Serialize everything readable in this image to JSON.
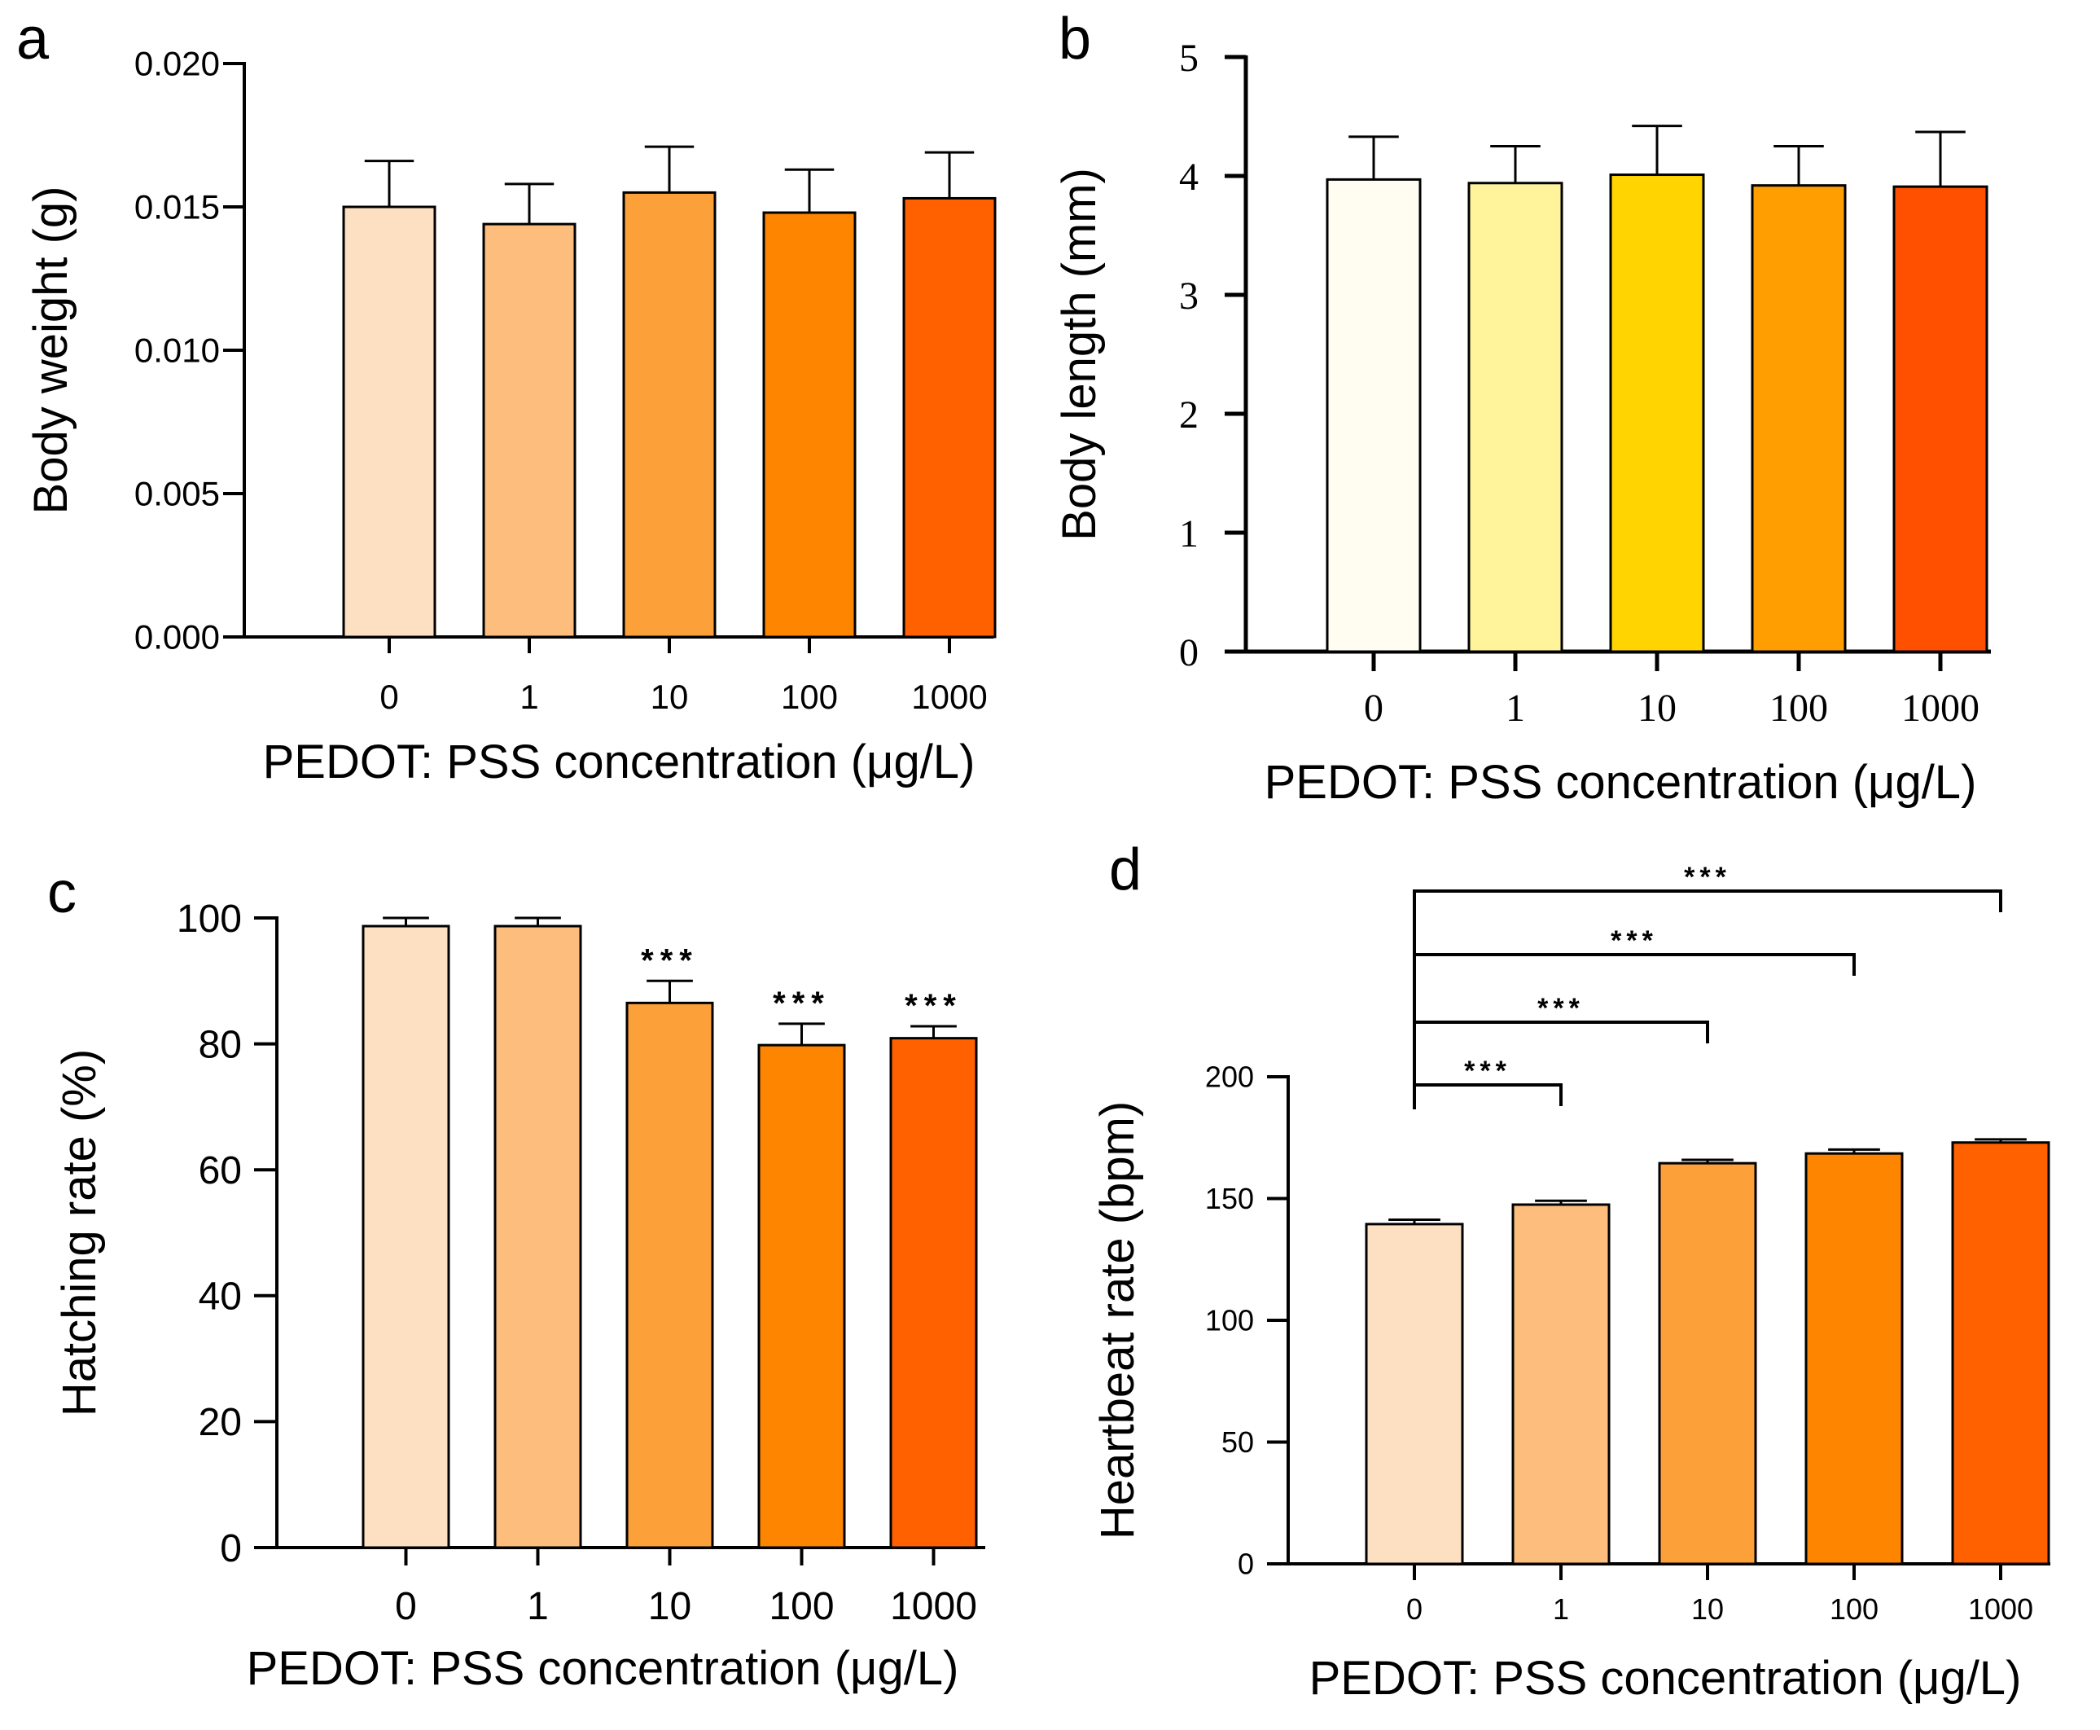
{
  "chart_data": [
    {
      "id": "a",
      "type": "bar",
      "panel_label": "a",
      "title": "",
      "xlabel": "PEDOT: PSS concentration (μg/L)",
      "ylabel": "Body weight (g)",
      "categories": [
        "0",
        "1",
        "10",
        "100",
        "1000"
      ],
      "values": [
        0.015,
        0.0144,
        0.0155,
        0.0148,
        0.0153
      ],
      "errors": [
        0.0016,
        0.0014,
        0.0016,
        0.0015,
        0.0016
      ],
      "ylim": [
        0,
        0.02
      ],
      "yticks": [
        0,
        0.005,
        0.01,
        0.015,
        0.02
      ],
      "ytick_labels": [
        "0.000",
        "0.005",
        "0.010",
        "0.015",
        "0.020"
      ],
      "colors": [
        "#FDDFC2",
        "#FDBE7D",
        "#FCA13A",
        "#FD8500",
        "#FF6000"
      ],
      "significance": [],
      "brackets": []
    },
    {
      "id": "b",
      "type": "bar",
      "panel_label": "b",
      "title": "",
      "xlabel": "PEDOT: PSS concentration (μg/L)",
      "ylabel": "Body length (mm)",
      "categories": [
        "0",
        "1",
        "10",
        "100",
        "1000"
      ],
      "values": [
        3.97,
        3.94,
        4.01,
        3.92,
        3.91
      ],
      "errors": [
        0.36,
        0.31,
        0.41,
        0.33,
        0.46
      ],
      "ylim": [
        0,
        5
      ],
      "yticks": [
        0,
        1,
        2,
        3,
        4,
        5
      ],
      "ytick_labels": [
        "0",
        "1",
        "2",
        "3",
        "4",
        "5"
      ],
      "colors": [
        "#FFFDF2",
        "#FFF49B",
        "#FFD400",
        "#FF9E00",
        "#FF5000"
      ],
      "significance": [],
      "brackets": []
    },
    {
      "id": "c",
      "type": "bar",
      "panel_label": "c",
      "title": "",
      "xlabel": "PEDOT: PSS concentration (μg/L)",
      "ylabel": "Hatching rate (%)",
      "categories": [
        "0",
        "1",
        "10",
        "100",
        "1000"
      ],
      "values": [
        98.7,
        98.7,
        86.5,
        79.8,
        80.9
      ],
      "errors": [
        1.3,
        1.3,
        3.5,
        3.4,
        1.9
      ],
      "ylim": [
        0,
        100
      ],
      "yticks": [
        0,
        20,
        40,
        60,
        80,
        100
      ],
      "ytick_labels": [
        "0",
        "20",
        "40",
        "60",
        "80",
        "100"
      ],
      "colors": [
        "#FDDFC2",
        "#FDBE7D",
        "#FCA13A",
        "#FD8500",
        "#FF6000"
      ],
      "significance": [
        "",
        "",
        "***",
        "***",
        "***"
      ],
      "brackets": []
    },
    {
      "id": "d",
      "type": "bar",
      "panel_label": "d",
      "title": "",
      "xlabel": "PEDOT: PSS concentration (μg/L)",
      "ylabel": "Heartbeat  rate (bpm)",
      "categories": [
        "0",
        "1",
        "10",
        "100",
        "1000"
      ],
      "values": [
        139.5,
        147.5,
        164.5,
        168.5,
        173
      ],
      "errors": [
        1.8,
        1.6,
        1.4,
        1.6,
        1.3
      ],
      "ylim": [
        0,
        200
      ],
      "yticks": [
        0,
        50,
        100,
        150,
        200
      ],
      "ytick_labels": [
        "0",
        "50",
        "100",
        "150",
        "200"
      ],
      "colors": [
        "#FDDFC2",
        "#FDBE7D",
        "#FCA13A",
        "#FD8500",
        "#FF6000"
      ],
      "significance": [],
      "brackets": [
        {
          "from": "0",
          "to": "1",
          "label": "***"
        },
        {
          "from": "0",
          "to": "10",
          "label": "***"
        },
        {
          "from": "0",
          "to": "100",
          "label": "***"
        },
        {
          "from": "0",
          "to": "1000",
          "label": "***"
        }
      ]
    }
  ]
}
